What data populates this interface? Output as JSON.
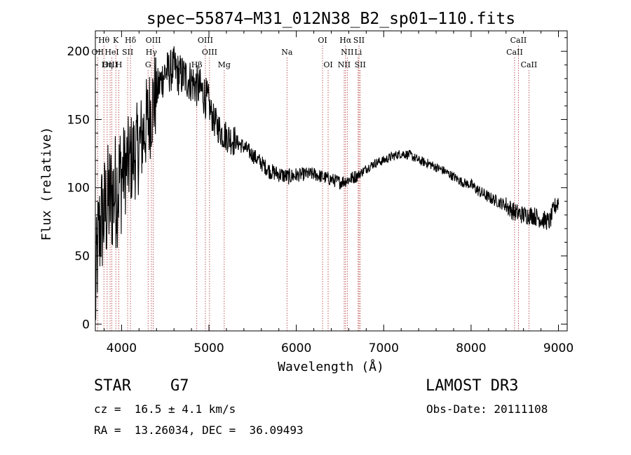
{
  "chart_data": {
    "type": "line",
    "title": "spec−55874−M31_012N38_B2_sp01−110.fits",
    "xlabel": "Wavelength (Å)",
    "ylabel": "Flux (relative)",
    "xlim": [
      3700,
      9100
    ],
    "ylim": [
      -5,
      215
    ],
    "x_ticks": [
      4000,
      5000,
      6000,
      7000,
      8000,
      9000
    ],
    "y_ticks": [
      0,
      50,
      100,
      150,
      200
    ],
    "x_tick_labels": [
      "4000",
      "5000",
      "6000",
      "7000",
      "8000",
      "9000"
    ],
    "y_tick_labels": [
      "0",
      "50",
      "100",
      "150",
      "200"
    ],
    "series": [
      {
        "name": "spectrum",
        "continuum": [
          [
            3700,
            10
          ],
          [
            3720,
            50
          ],
          [
            3760,
            75
          ],
          [
            3800,
            80
          ],
          [
            3850,
            90
          ],
          [
            3900,
            95
          ],
          [
            3950,
            100
          ],
          [
            4000,
            110
          ],
          [
            4050,
            115
          ],
          [
            4100,
            120
          ],
          [
            4150,
            125
          ],
          [
            4200,
            130
          ],
          [
            4250,
            140
          ],
          [
            4300,
            150
          ],
          [
            4350,
            160
          ],
          [
            4400,
            170
          ],
          [
            4450,
            178
          ],
          [
            4500,
            185
          ],
          [
            4550,
            185
          ],
          [
            4600,
            188
          ],
          [
            4650,
            183
          ],
          [
            4700,
            182
          ],
          [
            4750,
            180
          ],
          [
            4800,
            178
          ],
          [
            4850,
            175
          ],
          [
            4900,
            172
          ],
          [
            4950,
            168
          ],
          [
            5000,
            160
          ],
          [
            5050,
            150
          ],
          [
            5100,
            145
          ],
          [
            5150,
            140
          ],
          [
            5200,
            138
          ],
          [
            5300,
            134
          ],
          [
            5400,
            130
          ],
          [
            5500,
            124
          ],
          [
            5600,
            118
          ],
          [
            5700,
            112
          ],
          [
            5800,
            110
          ],
          [
            5900,
            108
          ],
          [
            6000,
            109
          ],
          [
            6100,
            110
          ],
          [
            6200,
            110
          ],
          [
            6300,
            108
          ],
          [
            6400,
            106
          ],
          [
            6500,
            104
          ],
          [
            6600,
            106
          ],
          [
            6700,
            109
          ],
          [
            6800,
            114
          ],
          [
            6900,
            118
          ],
          [
            7000,
            120
          ],
          [
            7100,
            123
          ],
          [
            7200,
            125
          ],
          [
            7300,
            124
          ],
          [
            7400,
            120
          ],
          [
            7500,
            118
          ],
          [
            7600,
            115
          ],
          [
            7700,
            112
          ],
          [
            7800,
            108
          ],
          [
            7900,
            104
          ],
          [
            8000,
            102
          ],
          [
            8100,
            97
          ],
          [
            8200,
            93
          ],
          [
            8300,
            90
          ],
          [
            8400,
            87
          ],
          [
            8500,
            82
          ],
          [
            8600,
            80
          ],
          [
            8700,
            80
          ],
          [
            8800,
            77
          ],
          [
            8900,
            75
          ],
          [
            8950,
            85
          ],
          [
            9000,
            90
          ]
        ]
      }
    ],
    "lines": [
      {
        "name": "Hθ",
        "wl": 3798,
        "row": 0
      },
      {
        "name": "K",
        "wl": 3934,
        "row": 0
      },
      {
        "name": "Hδ",
        "wl": 4102,
        "row": 0
      },
      {
        "name": "OIII",
        "wl": 4363,
        "row": 0
      },
      {
        "name": "OIII",
        "wl": 4959,
        "row": 0
      },
      {
        "name": "OI",
        "wl": 6300,
        "row": 0
      },
      {
        "name": "Hα",
        "wl": 6563,
        "row": 0
      },
      {
        "name": "SII",
        "wl": 6717,
        "row": 0
      },
      {
        "name": "CaII",
        "wl": 8542,
        "row": 0
      },
      {
        "name": "OII",
        "wl": 3727,
        "row": 1
      },
      {
        "name": "HeI",
        "wl": 3889,
        "row": 1
      },
      {
        "name": "SII",
        "wl": 4070,
        "row": 1
      },
      {
        "name": "Hγ",
        "wl": 4341,
        "row": 1
      },
      {
        "name": "OIII",
        "wl": 5007,
        "row": 1
      },
      {
        "name": "NII",
        "wl": 6583,
        "row": 1
      },
      {
        "name": "Li",
        "wl": 6708,
        "row": 1
      },
      {
        "name": "CaII",
        "wl": 8498,
        "row": 1
      },
      {
        "name": "OIII",
        "wl": 3869,
        "row": 2
      },
      {
        "name": "Hη",
        "wl": 3835,
        "row": 2
      },
      {
        "name": "H",
        "wl": 3969,
        "row": 2
      },
      {
        "name": "G",
        "wl": 4304,
        "row": 2
      },
      {
        "name": "Hβ",
        "wl": 4861,
        "row": 2
      },
      {
        "name": "Mg",
        "wl": 5175,
        "row": 2
      },
      {
        "name": "Na",
        "wl": 5893,
        "row": 1
      },
      {
        "name": "OI",
        "wl": 6364,
        "row": 2
      },
      {
        "name": "NII",
        "wl": 6548,
        "row": 2
      },
      {
        "name": "SII",
        "wl": 6731,
        "row": 2
      },
      {
        "name": "CaII",
        "wl": 8662,
        "row": 2
      }
    ]
  },
  "info": {
    "object_class": "STAR",
    "subclass": "G7",
    "survey": "LAMOST DR3",
    "velocity": "cz =  16.5 ± 4.1 km/s",
    "obs_date": "Obs-Date: 20111108",
    "coords": "RA =  13.26034, DEC =  36.09493"
  },
  "colors": {
    "line_marker": "#b03030",
    "spectrum": "#000000"
  }
}
